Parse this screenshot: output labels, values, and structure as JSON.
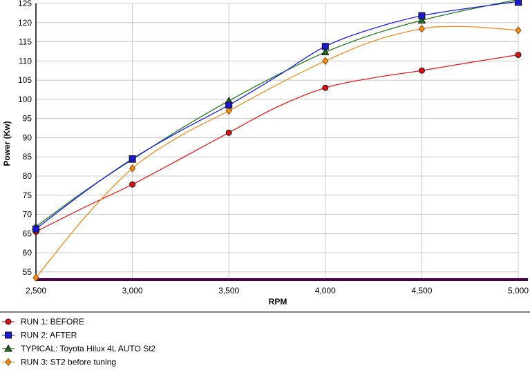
{
  "chart_data": {
    "type": "line",
    "title": "",
    "xlabel": "RPM",
    "ylabel": "Power (Kw)",
    "xlim": [
      2500,
      5000
    ],
    "ylim": [
      53,
      125
    ],
    "x_ticks": [
      2500,
      3000,
      3500,
      4000,
      4500,
      5000
    ],
    "x_tick_labels": [
      "2,500",
      "3,000",
      "3,500",
      "4,000",
      "4,500",
      "5,000"
    ],
    "y_ticks": [
      55,
      60,
      65,
      70,
      75,
      80,
      85,
      90,
      95,
      100,
      105,
      110,
      115,
      120,
      125
    ],
    "y_tick_labels": [
      "55",
      "60",
      "65",
      "70",
      "75",
      "80",
      "85",
      "90",
      "95",
      "100",
      "105",
      "110",
      "115",
      "120",
      "125"
    ],
    "grid": true,
    "legend_position": "bottom",
    "series": [
      {
        "name": "RUN 1: BEFORE",
        "color": "#e81c1c",
        "marker": "circle",
        "marker_fill": "#dd1111",
        "x": [
          2500,
          2750,
          3000,
          3250,
          3500,
          3750,
          4000,
          4250,
          4500,
          4750,
          5000
        ],
        "values": [
          65.5,
          71.8,
          77.8,
          84.5,
          91.3,
          98.0,
          103.0,
          105.6,
          107.5,
          109.6,
          111.6
        ],
        "marker_x": [
          2500,
          3000,
          3500,
          4000,
          4500,
          5000
        ],
        "marker_values": [
          65.5,
          77.8,
          91.3,
          103.0,
          107.5,
          111.6
        ]
      },
      {
        "name": "RUN 2: AFTER",
        "color": "#1c1ce8",
        "marker": "square",
        "marker_fill": "#1a1acc",
        "x": [
          2500,
          2750,
          3000,
          3250,
          3500,
          3750,
          4000,
          4250,
          4500,
          4750,
          5000
        ],
        "values": [
          66.2,
          75.8,
          84.5,
          91.8,
          98.5,
          106.0,
          113.8,
          118.5,
          121.8,
          123.8,
          125.5
        ],
        "marker_x": [
          2500,
          3000,
          3500,
          4000,
          4500,
          5000
        ],
        "marker_values": [
          66.2,
          84.5,
          98.5,
          113.8,
          121.8,
          125.5
        ]
      },
      {
        "name": "TYPICAL: Toyota Hilux 4L AUTO St2",
        "color": "#1e7a1e",
        "marker": "triangle",
        "marker_fill": "#1e6e1e",
        "x": [
          2500,
          2750,
          3000,
          3250,
          3500,
          3750,
          4000,
          4250,
          4500,
          4750,
          5000
        ],
        "values": [
          66.8,
          76.0,
          84.3,
          92.3,
          99.6,
          106.3,
          112.3,
          117.0,
          120.6,
          123.5,
          126.0
        ],
        "marker_x": [
          2500,
          3000,
          3500,
          4000,
          4500,
          5000
        ],
        "marker_values": [
          66.8,
          84.3,
          99.6,
          112.3,
          120.6,
          126.0
        ]
      },
      {
        "name": "RUN 3: ST2 before tuning",
        "color": "#f08c1c",
        "marker": "diamond",
        "marker_fill": "#f08c1c",
        "x": [
          2500,
          2750,
          3000,
          3250,
          3500,
          3750,
          4000,
          4250,
          4500,
          4650,
          4800,
          5000
        ],
        "values": [
          53.5,
          69.0,
          82.0,
          90.5,
          97.0,
          103.8,
          110.0,
          115.2,
          118.4,
          119.0,
          118.8,
          118.0
        ],
        "marker_x": [
          2500,
          3000,
          3500,
          4000,
          4500,
          5000
        ],
        "marker_values": [
          53.5,
          82.0,
          97.0,
          110.0,
          118.4,
          118.0
        ]
      }
    ]
  }
}
